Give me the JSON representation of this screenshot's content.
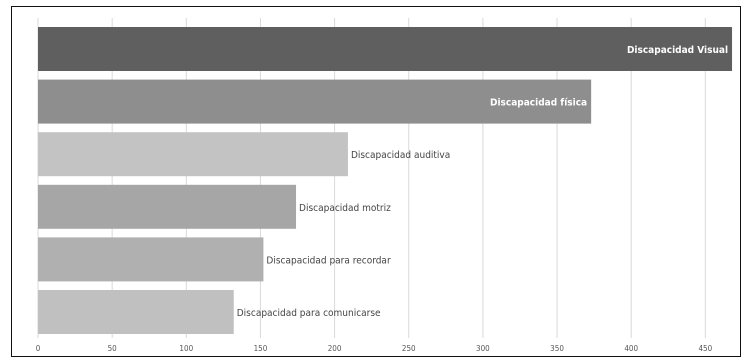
{
  "chart_data": {
    "type": "bar",
    "orientation": "horizontal",
    "categories": [
      "Discapacidad Visual",
      "Discapacidad física",
      "Discapacidad auditiva",
      "Discapacidad motriz",
      "Discapacidad para recordar",
      "Discapacidad para comunicarse"
    ],
    "values": [
      468,
      373,
      209,
      174,
      152,
      132
    ],
    "colors": [
      "#5f5f5f",
      "#8e8e8e",
      "#c3c3c3",
      "#a6a6a6",
      "#b0b0b0",
      "#c0c0c0"
    ],
    "label_placement": [
      "inside",
      "inside",
      "outside",
      "outside",
      "outside",
      "outside"
    ],
    "xlim": [
      0,
      470
    ],
    "xticks": [
      0,
      50,
      100,
      150,
      200,
      250,
      300,
      350,
      400,
      450
    ],
    "grid": true,
    "title": "",
    "xlabel": "",
    "ylabel": "",
    "legend": "none"
  }
}
